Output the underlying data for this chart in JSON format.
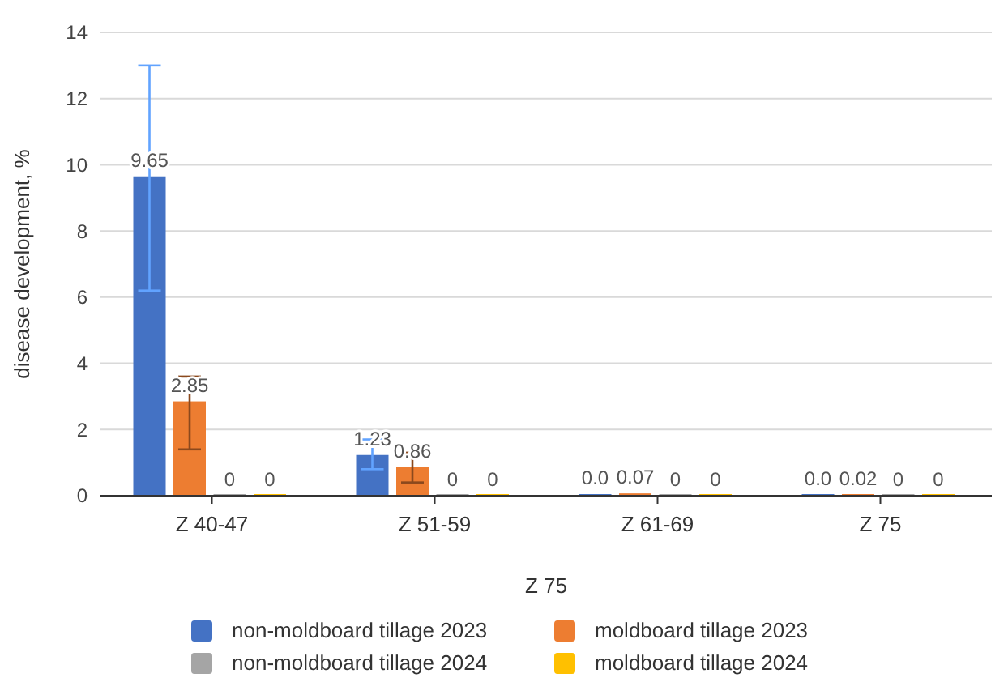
{
  "chart_data": {
    "type": "bar",
    "xlabel": "Z 75",
    "ylabel": "disease development, %",
    "categories": [
      "Z 40-47",
      "Z 51-59",
      "Z 61-69",
      "Z 75"
    ],
    "ylim": [
      0,
      14
    ],
    "yticks": [
      0,
      2,
      4,
      6,
      8,
      10,
      12,
      14
    ],
    "grid": "y",
    "legend": "bottom",
    "series": [
      {
        "name": "non-moldboard tillage 2023",
        "color": "#4472c4",
        "values": [
          9.65,
          1.23,
          0.04,
          0.03
        ],
        "value_labels": [
          "9.65",
          "1.23",
          "0.0",
          "0.0"
        ],
        "errors": [
          [
            6.2,
            13.0
          ],
          [
            0.8,
            1.7
          ],
          null,
          null
        ]
      },
      {
        "name": "moldboard tillage 2023",
        "color": "#ed7d31",
        "values": [
          2.85,
          0.86,
          0.07,
          0.02
        ],
        "value_labels": [
          "2.85",
          "0.86",
          "0.07",
          "0.02"
        ],
        "errors": [
          [
            1.4,
            3.6
          ],
          [
            0.4,
            1.3
          ],
          null,
          null
        ]
      },
      {
        "name": "non-moldboard tillage 2024",
        "color": "#a5a5a5",
        "values": [
          0,
          0,
          0,
          0
        ],
        "value_labels": [
          "0",
          "0",
          "0",
          "0"
        ]
      },
      {
        "name": "moldboard tillage 2024",
        "color": "#ffc000",
        "values": [
          0,
          0,
          0,
          0
        ],
        "value_labels": [
          "0",
          "0",
          "0",
          "0"
        ]
      }
    ]
  }
}
